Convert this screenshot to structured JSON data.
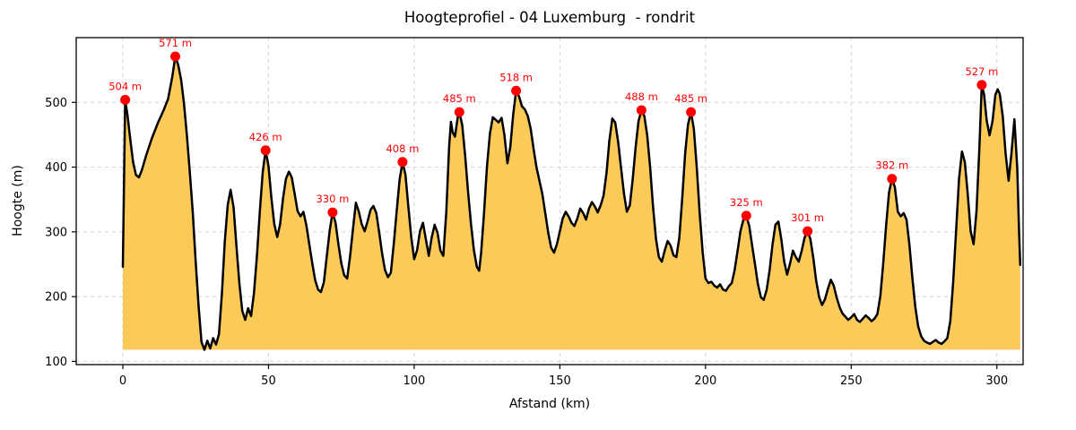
{
  "chart_data": {
    "type": "area",
    "title": "Hoogteprofiel - 04 Luxemburg  - rondrit",
    "xlabel": "Afstand (km)",
    "ylabel": "Hoogte (m)",
    "xlim": [
      -16,
      309
    ],
    "ylim": [
      95,
      600
    ],
    "x_ticks": [
      0,
      50,
      100,
      150,
      200,
      250,
      300
    ],
    "y_ticks": [
      100,
      200,
      300,
      400,
      500
    ],
    "grid": true,
    "grid_color": "#d3d3d3",
    "line_color": "#000000",
    "fill_color": "#fbca58",
    "marker_color": "#ff0000",
    "fill_baseline": 118,
    "peaks": [
      {
        "x": 0.8,
        "y": 504,
        "label": "504 m"
      },
      {
        "x": 18,
        "y": 571,
        "label": "571 m"
      },
      {
        "x": 49,
        "y": 426,
        "label": "426 m"
      },
      {
        "x": 72,
        "y": 330,
        "label": "330 m"
      },
      {
        "x": 96,
        "y": 408,
        "label": "408 m"
      },
      {
        "x": 115.5,
        "y": 485,
        "label": "485 m"
      },
      {
        "x": 135,
        "y": 518,
        "label": "518 m"
      },
      {
        "x": 178,
        "y": 488,
        "label": "488 m"
      },
      {
        "x": 195,
        "y": 485,
        "label": "485 m"
      },
      {
        "x": 214,
        "y": 325,
        "label": "325 m"
      },
      {
        "x": 235,
        "y": 301,
        "label": "301 m"
      },
      {
        "x": 264,
        "y": 382,
        "label": "382 m"
      },
      {
        "x": 294.8,
        "y": 527,
        "label": "527 m"
      }
    ],
    "profile": [
      [
        0,
        246
      ],
      [
        0.8,
        504
      ],
      [
        1.6,
        480
      ],
      [
        2.5,
        445
      ],
      [
        3.5,
        408
      ],
      [
        4.5,
        388
      ],
      [
        5.5,
        384
      ],
      [
        6.5,
        395
      ],
      [
        8,
        418
      ],
      [
        10,
        445
      ],
      [
        12,
        468
      ],
      [
        14,
        488
      ],
      [
        15.5,
        505
      ],
      [
        17,
        540
      ],
      [
        18,
        571
      ],
      [
        19,
        558
      ],
      [
        20,
        535
      ],
      [
        21,
        498
      ],
      [
        22,
        448
      ],
      [
        23,
        392
      ],
      [
        24,
        330
      ],
      [
        25,
        255
      ],
      [
        26,
        185
      ],
      [
        27,
        130
      ],
      [
        28,
        118
      ],
      [
        29,
        132
      ],
      [
        30,
        120
      ],
      [
        31,
        136
      ],
      [
        32,
        126
      ],
      [
        33,
        142
      ],
      [
        34,
        205
      ],
      [
        35,
        285
      ],
      [
        36,
        342
      ],
      [
        37,
        365
      ],
      [
        38,
        338
      ],
      [
        39,
        278
      ],
      [
        40,
        220
      ],
      [
        41,
        178
      ],
      [
        42,
        164
      ],
      [
        43,
        182
      ],
      [
        44,
        170
      ],
      [
        45,
        205
      ],
      [
        46,
        262
      ],
      [
        47,
        330
      ],
      [
        48,
        392
      ],
      [
        49,
        426
      ],
      [
        50,
        402
      ],
      [
        51,
        352
      ],
      [
        52,
        312
      ],
      [
        53,
        292
      ],
      [
        54,
        312
      ],
      [
        55,
        352
      ],
      [
        56,
        382
      ],
      [
        57,
        393
      ],
      [
        58,
        384
      ],
      [
        59,
        358
      ],
      [
        60,
        332
      ],
      [
        61,
        324
      ],
      [
        62,
        331
      ],
      [
        63,
        310
      ],
      [
        64,
        281
      ],
      [
        65,
        252
      ],
      [
        66,
        226
      ],
      [
        67,
        211
      ],
      [
        68,
        207
      ],
      [
        69,
        222
      ],
      [
        70,
        262
      ],
      [
        71,
        302
      ],
      [
        72,
        330
      ],
      [
        73,
        314
      ],
      [
        74,
        281
      ],
      [
        75,
        251
      ],
      [
        76,
        233
      ],
      [
        77,
        228
      ],
      [
        78,
        262
      ],
      [
        79,
        305
      ],
      [
        80,
        345
      ],
      [
        81,
        331
      ],
      [
        82,
        312
      ],
      [
        83,
        301
      ],
      [
        84,
        316
      ],
      [
        85,
        334
      ],
      [
        86,
        340
      ],
      [
        87,
        329
      ],
      [
        88,
        299
      ],
      [
        89,
        266
      ],
      [
        90,
        241
      ],
      [
        91,
        230
      ],
      [
        92,
        237
      ],
      [
        93,
        282
      ],
      [
        94,
        332
      ],
      [
        95,
        381
      ],
      [
        96,
        408
      ],
      [
        97,
        388
      ],
      [
        98,
        339
      ],
      [
        99,
        291
      ],
      [
        100,
        258
      ],
      [
        101,
        272
      ],
      [
        102,
        301
      ],
      [
        103,
        314
      ],
      [
        104,
        289
      ],
      [
        105,
        263
      ],
      [
        106,
        291
      ],
      [
        107,
        311
      ],
      [
        108,
        299
      ],
      [
        109,
        271
      ],
      [
        110,
        263
      ],
      [
        111,
        330
      ],
      [
        112,
        432
      ],
      [
        112.6,
        470
      ],
      [
        113.2,
        454
      ],
      [
        114,
        447
      ],
      [
        115,
        478
      ],
      [
        115.5,
        485
      ],
      [
        116.5,
        465
      ],
      [
        117.5,
        417
      ],
      [
        118.5,
        362
      ],
      [
        119.5,
        312
      ],
      [
        120.5,
        272
      ],
      [
        121.5,
        246
      ],
      [
        122.3,
        240
      ],
      [
        123,
        268
      ],
      [
        124,
        331
      ],
      [
        125,
        401
      ],
      [
        126,
        452
      ],
      [
        127,
        477
      ],
      [
        128,
        473
      ],
      [
        129,
        469
      ],
      [
        130,
        476
      ],
      [
        131,
        449
      ],
      [
        132,
        406
      ],
      [
        133,
        431
      ],
      [
        134,
        482
      ],
      [
        135,
        518
      ],
      [
        136,
        509
      ],
      [
        137,
        494
      ],
      [
        138,
        489
      ],
      [
        139,
        479
      ],
      [
        140,
        459
      ],
      [
        141,
        428
      ],
      [
        142,
        399
      ],
      [
        143,
        379
      ],
      [
        144,
        358
      ],
      [
        145,
        329
      ],
      [
        146,
        299
      ],
      [
        147,
        276
      ],
      [
        148,
        268
      ],
      [
        149,
        281
      ],
      [
        150,
        301
      ],
      [
        151,
        321
      ],
      [
        152,
        331
      ],
      [
        153,
        324
      ],
      [
        154,
        314
      ],
      [
        155,
        309
      ],
      [
        156,
        321
      ],
      [
        157,
        336
      ],
      [
        158,
        329
      ],
      [
        159,
        319
      ],
      [
        160,
        336
      ],
      [
        161,
        346
      ],
      [
        162,
        339
      ],
      [
        163,
        330
      ],
      [
        164,
        341
      ],
      [
        165,
        356
      ],
      [
        166,
        391
      ],
      [
        167,
        441
      ],
      [
        168,
        475
      ],
      [
        169,
        469
      ],
      [
        170,
        439
      ],
      [
        171,
        399
      ],
      [
        172,
        359
      ],
      [
        173,
        331
      ],
      [
        174,
        341
      ],
      [
        175,
        381
      ],
      [
        176,
        431
      ],
      [
        177,
        471
      ],
      [
        178,
        488
      ],
      [
        179,
        479
      ],
      [
        180,
        449
      ],
      [
        181,
        399
      ],
      [
        182,
        339
      ],
      [
        183,
        289
      ],
      [
        184,
        261
      ],
      [
        185,
        254
      ],
      [
        186,
        271
      ],
      [
        187,
        286
      ],
      [
        188,
        279
      ],
      [
        189,
        264
      ],
      [
        190,
        261
      ],
      [
        191,
        291
      ],
      [
        192,
        351
      ],
      [
        193,
        421
      ],
      [
        194,
        466
      ],
      [
        195,
        485
      ],
      [
        196,
        459
      ],
      [
        197,
        399
      ],
      [
        198,
        329
      ],
      [
        199,
        269
      ],
      [
        200,
        228
      ],
      [
        201,
        221
      ],
      [
        202,
        223
      ],
      [
        203,
        217
      ],
      [
        204,
        214
      ],
      [
        205,
        219
      ],
      [
        206,
        211
      ],
      [
        207,
        209
      ],
      [
        208,
        216
      ],
      [
        209,
        221
      ],
      [
        210,
        241
      ],
      [
        211,
        271
      ],
      [
        212,
        301
      ],
      [
        213,
        319
      ],
      [
        214,
        325
      ],
      [
        215,
        309
      ],
      [
        216,
        279
      ],
      [
        217,
        249
      ],
      [
        218,
        219
      ],
      [
        219,
        199
      ],
      [
        220,
        195
      ],
      [
        221,
        211
      ],
      [
        222,
        241
      ],
      [
        223,
        281
      ],
      [
        224,
        311
      ],
      [
        225,
        316
      ],
      [
        226,
        289
      ],
      [
        227,
        254
      ],
      [
        228,
        234
      ],
      [
        229,
        251
      ],
      [
        230,
        271
      ],
      [
        231,
        261
      ],
      [
        232,
        254
      ],
      [
        233,
        271
      ],
      [
        234,
        291
      ],
      [
        235,
        301
      ],
      [
        236,
        289
      ],
      [
        237,
        259
      ],
      [
        238,
        224
      ],
      [
        239,
        199
      ],
      [
        240,
        187
      ],
      [
        241,
        196
      ],
      [
        242,
        212
      ],
      [
        243,
        226
      ],
      [
        244,
        217
      ],
      [
        245,
        199
      ],
      [
        246,
        184
      ],
      [
        247,
        174
      ],
      [
        248,
        169
      ],
      [
        249,
        164
      ],
      [
        250,
        168
      ],
      [
        251,
        173
      ],
      [
        252,
        164
      ],
      [
        253,
        161
      ],
      [
        254,
        166
      ],
      [
        255,
        171
      ],
      [
        256,
        167
      ],
      [
        257,
        162
      ],
      [
        258,
        166
      ],
      [
        259,
        173
      ],
      [
        260,
        201
      ],
      [
        261,
        251
      ],
      [
        262,
        311
      ],
      [
        263,
        361
      ],
      [
        264,
        382
      ],
      [
        265,
        369
      ],
      [
        266,
        331
      ],
      [
        267,
        324
      ],
      [
        268,
        329
      ],
      [
        269,
        319
      ],
      [
        270,
        279
      ],
      [
        271,
        229
      ],
      [
        272,
        184
      ],
      [
        273,
        154
      ],
      [
        274,
        139
      ],
      [
        275,
        132
      ],
      [
        276,
        129
      ],
      [
        277,
        127
      ],
      [
        278,
        130
      ],
      [
        279,
        133
      ],
      [
        280,
        129
      ],
      [
        281,
        127
      ],
      [
        282,
        131
      ],
      [
        283,
        136
      ],
      [
        284,
        162
      ],
      [
        285,
        222
      ],
      [
        286,
        302
      ],
      [
        287,
        381
      ],
      [
        288,
        424
      ],
      [
        289,
        408
      ],
      [
        290,
        358
      ],
      [
        291,
        301
      ],
      [
        292,
        281
      ],
      [
        293,
        331
      ],
      [
        294,
        431
      ],
      [
        294.8,
        527
      ],
      [
        295.6,
        512
      ],
      [
        296.5,
        472
      ],
      [
        297.5,
        449
      ],
      [
        298.5,
        471
      ],
      [
        299.5,
        512
      ],
      [
        300.3,
        520
      ],
      [
        301,
        513
      ],
      [
        302,
        479
      ],
      [
        303,
        421
      ],
      [
        304,
        379
      ],
      [
        305,
        421
      ],
      [
        306,
        474
      ],
      [
        307,
        398
      ],
      [
        307.6,
        301
      ],
      [
        308,
        249
      ]
    ]
  }
}
